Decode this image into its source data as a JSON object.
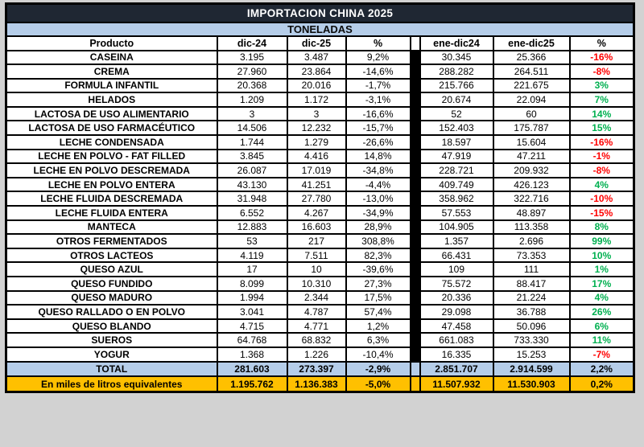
{
  "title": "IMPORTACION CHINA 2025",
  "subtitle": "TONELADAS",
  "colors": {
    "title_bg": "#1F2733",
    "band_blue": "#B5CDE9",
    "row_orange": "#FFC000",
    "positive": "#00B050",
    "negative": "#FF0000",
    "page_bg": "#D2D2D2"
  },
  "chart_data": {
    "type": "table",
    "title": "IMPORTACION CHINA 2025",
    "unit_band": "TONELADAS",
    "columns": [
      "Producto",
      "dic-24",
      "dic-25",
      "%",
      "ene-dic24",
      "ene-dic25",
      "%"
    ],
    "rows": [
      {
        "product": "CASEINA",
        "values": [
          "3.195",
          "3.487",
          "9,2%",
          "30.345",
          "25.366",
          "-16%"
        ],
        "trend": "negative"
      },
      {
        "product": "CREMA",
        "values": [
          "27.960",
          "23.864",
          "-14,6%",
          "288.282",
          "264.511",
          "-8%"
        ],
        "trend": "negative"
      },
      {
        "product": "FORMULA INFANTIL",
        "values": [
          "20.368",
          "20.016",
          "-1,7%",
          "215.766",
          "221.675",
          "3%"
        ],
        "trend": "positive"
      },
      {
        "product": "HELADOS",
        "values": [
          "1.209",
          "1.172",
          "-3,1%",
          "20.674",
          "22.094",
          "7%"
        ],
        "trend": "positive"
      },
      {
        "product": "LACTOSA DE USO ALIMENTARIO",
        "values": [
          "3",
          "3",
          "-16,6%",
          "52",
          "60",
          "14%"
        ],
        "trend": "positive"
      },
      {
        "product": "LACTOSA DE USO FARMACÉUTICO",
        "values": [
          "14.506",
          "12.232",
          "-15,7%",
          "152.403",
          "175.787",
          "15%"
        ],
        "trend": "positive"
      },
      {
        "product": "LECHE CONDENSADA",
        "values": [
          "1.744",
          "1.279",
          "-26,6%",
          "18.597",
          "15.604",
          "-16%"
        ],
        "trend": "negative"
      },
      {
        "product": "LECHE EN POLVO - FAT FILLED",
        "values": [
          "3.845",
          "4.416",
          "14,8%",
          "47.919",
          "47.211",
          "-1%"
        ],
        "trend": "negative"
      },
      {
        "product": "LECHE EN POLVO DESCREMADA",
        "values": [
          "26.087",
          "17.019",
          "-34,8%",
          "228.721",
          "209.932",
          "-8%"
        ],
        "trend": "negative"
      },
      {
        "product": "LECHE EN POLVO ENTERA",
        "values": [
          "43.130",
          "41.251",
          "-4,4%",
          "409.749",
          "426.123",
          "4%"
        ],
        "trend": "positive"
      },
      {
        "product": "LECHE FLUIDA DESCREMADA",
        "values": [
          "31.948",
          "27.780",
          "-13,0%",
          "358.962",
          "322.716",
          "-10%"
        ],
        "trend": "negative"
      },
      {
        "product": "LECHE FLUIDA ENTERA",
        "values": [
          "6.552",
          "4.267",
          "-34,9%",
          "57.553",
          "48.897",
          "-15%"
        ],
        "trend": "negative"
      },
      {
        "product": "MANTECA",
        "values": [
          "12.883",
          "16.603",
          "28,9%",
          "104.905",
          "113.358",
          "8%"
        ],
        "trend": "positive"
      },
      {
        "product": "OTROS FERMENTADOS",
        "values": [
          "53",
          "217",
          "308,8%",
          "1.357",
          "2.696",
          "99%"
        ],
        "trend": "positive"
      },
      {
        "product": "OTROS LACTEOS",
        "values": [
          "4.119",
          "7.511",
          "82,3%",
          "66.431",
          "73.353",
          "10%"
        ],
        "trend": "positive"
      },
      {
        "product": "QUESO AZUL",
        "values": [
          "17",
          "10",
          "-39,6%",
          "109",
          "111",
          "1%"
        ],
        "trend": "positive"
      },
      {
        "product": "QUESO FUNDIDO",
        "values": [
          "8.099",
          "10.310",
          "27,3%",
          "75.572",
          "88.417",
          "17%"
        ],
        "trend": "positive"
      },
      {
        "product": "QUESO MADURO",
        "values": [
          "1.994",
          "2.344",
          "17,5%",
          "20.336",
          "21.224",
          "4%"
        ],
        "trend": "positive"
      },
      {
        "product": "QUESO RALLADO O EN POLVO",
        "values": [
          "3.041",
          "4.787",
          "57,4%",
          "29.098",
          "36.788",
          "26%"
        ],
        "trend": "positive"
      },
      {
        "product": "QUESO BLANDO",
        "values": [
          "4.715",
          "4.771",
          "1,2%",
          "47.458",
          "50.096",
          "6%"
        ],
        "trend": "positive"
      },
      {
        "product": "SUEROS",
        "values": [
          "64.768",
          "68.832",
          "6,3%",
          "661.083",
          "733.330",
          "11%"
        ],
        "trend": "positive"
      },
      {
        "product": "YOGUR",
        "values": [
          "1.368",
          "1.226",
          "-10,4%",
          "16.335",
          "15.253",
          "-7%"
        ],
        "trend": "negative"
      }
    ],
    "total_row": {
      "product": "TOTAL",
      "values": [
        "281.603",
        "273.397",
        "-2,9%",
        "2.851.707",
        "2.914.599",
        "2,2%"
      ],
      "trend": "none"
    },
    "equivalents_row": {
      "product": "En miles de litros equivalentes",
      "values": [
        "1.195.762",
        "1.136.383",
        "-5,0%",
        "11.507.932",
        "11.530.903",
        "0,2%"
      ],
      "trend": "none"
    }
  }
}
